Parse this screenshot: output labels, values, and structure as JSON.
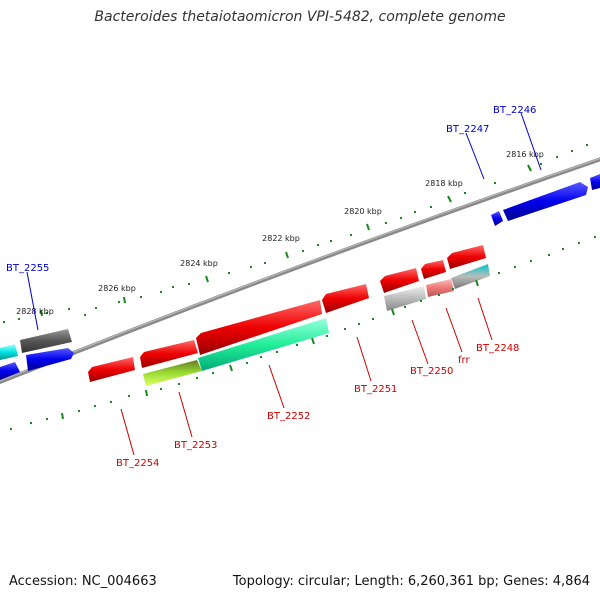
{
  "title": "Bacteroides thetaiotaomicron VPI-5482, complete genome",
  "footer": {
    "accession": "Accession: NC_004663",
    "topology": "Topology: circular; Length: 6,260,361 bp; Genes: 4,864"
  },
  "colors": {
    "forward_gene": "#0000ee",
    "reverse_gene": "#ee0000",
    "backbone": "#777777",
    "tick": "#1a8a1a",
    "forward_label": "#0000cc",
    "reverse_label": "#cc0000"
  },
  "kbp_labels": [
    "2816 kbp",
    "2818 kbp",
    "2820 kbp",
    "2822 kbp",
    "2824 kbp",
    "2826 kbp",
    "2828 kbp"
  ],
  "forward_labels": [
    "BT_2246",
    "BT_2247",
    "BT_2255"
  ],
  "reverse_labels": [
    "BT_2248",
    "frr",
    "BT_2250",
    "BT_2251",
    "BT_2252",
    "BT_2253",
    "BT_2254"
  ]
}
